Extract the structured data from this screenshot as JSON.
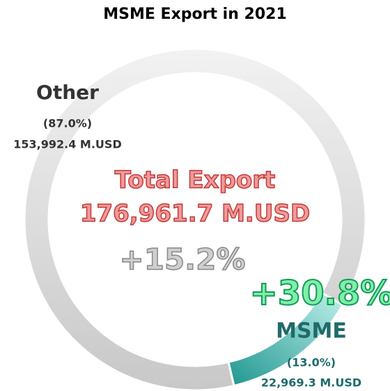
{
  "chart_data": {
    "type": "pie",
    "title": "MSME Export in 2021",
    "categories": [
      "Other",
      "MSME"
    ],
    "values": [
      87.0,
      13.0
    ],
    "value_labels": [
      "(87.0%)",
      "(13.0%)"
    ],
    "amount_labels": [
      "153,992.4 M.USD",
      "22,969.3 M.USD"
    ],
    "colors": [
      "#dcdcdc",
      "#4fbfb8"
    ],
    "annotations": {
      "total_label": "Total Export",
      "total_value": "176,961.7 M.USD",
      "total_growth": "+15.2%",
      "msme_growth": "+30.8%"
    }
  }
}
